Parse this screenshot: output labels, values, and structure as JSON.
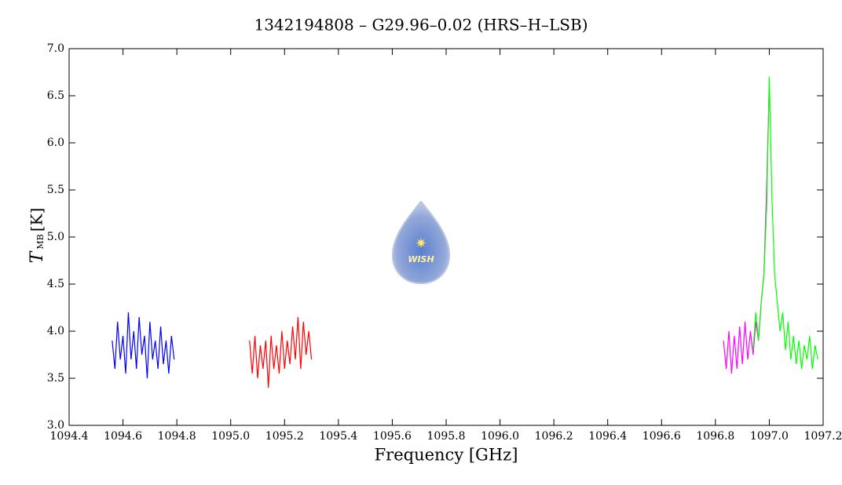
{
  "chart_data": {
    "type": "line",
    "title": "1342194808 – G29.96–0.02 (HRS–H–LSB)",
    "xlabel": "Frequency [GHz]",
    "ylabel": {
      "symbol": "T",
      "subscript": "MB",
      "unit": "[K]"
    },
    "logo_text": "WISH",
    "xlim": [
      1094.4,
      1097.2
    ],
    "xticks": [
      1094.4,
      1094.6,
      1094.8,
      {
        "value": 1095,
        "label": "1095.0"
      },
      1095.2,
      1095.4,
      1095.6,
      1095.8,
      {
        "value": 1096,
        "label": "1096.0"
      },
      1096.2,
      1096.4,
      1096.6,
      1096.8,
      {
        "value": 1097,
        "label": "1097.0"
      },
      1097.2
    ],
    "ylim": [
      3,
      7
    ],
    "yticks": [
      {
        "value": 3,
        "label": "3.0"
      },
      3.5,
      {
        "value": 4,
        "label": "4.0"
      },
      4.5,
      {
        "value": 5,
        "label": "5.0"
      },
      5.5,
      {
        "value": 6,
        "label": "6.0"
      },
      6.5,
      {
        "value": 7,
        "label": "7.0"
      }
    ],
    "series": [
      {
        "color": "#0000ff",
        "x": [
          1094.56,
          1094.57,
          1094.58,
          1094.59,
          1094.6,
          1094.61,
          1094.62,
          1094.63,
          1094.64,
          1094.65,
          1094.66,
          1094.67,
          1094.68,
          1094.69,
          1094.7,
          1094.71,
          1094.72,
          1094.73,
          1094.74,
          1094.75,
          1094.76,
          1094.77,
          1094.78,
          1094.79
        ],
        "values": [
          3.9,
          3.6,
          4.1,
          3.7,
          3.95,
          3.55,
          4.2,
          3.7,
          4.0,
          3.6,
          4.15,
          3.75,
          3.95,
          3.5,
          4.1,
          3.7,
          3.9,
          3.6,
          4.05,
          3.65,
          3.9,
          3.55,
          3.95,
          3.7
        ]
      },
      {
        "color": "#ff0000",
        "x": [
          1095.07,
          1095.08,
          1095.09,
          1095.1,
          1095.11,
          1095.12,
          1095.13,
          1095.14,
          1095.15,
          1095.16,
          1095.17,
          1095.18,
          1095.19,
          1095.2,
          1095.21,
          1095.22,
          1095.23,
          1095.24,
          1095.25,
          1095.26,
          1095.27,
          1095.28,
          1095.29,
          1095.3
        ],
        "values": [
          3.9,
          3.55,
          3.95,
          3.5,
          3.85,
          3.6,
          3.9,
          3.4,
          3.95,
          3.6,
          3.85,
          3.55,
          4.0,
          3.6,
          3.9,
          3.65,
          4.05,
          3.7,
          4.15,
          3.6,
          4.1,
          3.75,
          4.0,
          3.7
        ]
      },
      {
        "color": "#ff00ff",
        "x": [
          1096.83,
          1096.84,
          1096.85,
          1096.86,
          1096.87,
          1096.88,
          1096.89,
          1096.9,
          1096.91,
          1096.92,
          1096.93,
          1096.94,
          1096.95,
          1096.96,
          1096.97,
          1096.98,
          1096.99,
          1097.0
        ],
        "values": [
          3.9,
          3.6,
          4.0,
          3.55,
          3.95,
          3.6,
          4.05,
          3.65,
          4.1,
          3.7,
          4.0,
          3.75,
          4.1,
          3.9,
          4.3,
          4.6,
          5.5,
          6.6
        ]
      },
      {
        "color": "#00ff00",
        "x": [
          1096.94,
          1096.95,
          1096.96,
          1096.97,
          1096.98,
          1096.99,
          1097.0,
          1097.01,
          1097.02,
          1097.03,
          1097.04,
          1097.05,
          1097.06,
          1097.07,
          1097.08,
          1097.09,
          1097.1,
          1097.11,
          1097.12,
          1097.13,
          1097.14,
          1097.15,
          1097.16,
          1097.17,
          1097.18
        ],
        "values": [
          3.8,
          4.2,
          3.9,
          4.3,
          4.6,
          5.3,
          6.7,
          5.4,
          4.6,
          4.3,
          4.0,
          4.2,
          3.8,
          4.1,
          3.7,
          3.95,
          3.65,
          3.9,
          3.6,
          3.85,
          3.7,
          3.95,
          3.6,
          3.85,
          3.7
        ]
      }
    ]
  }
}
